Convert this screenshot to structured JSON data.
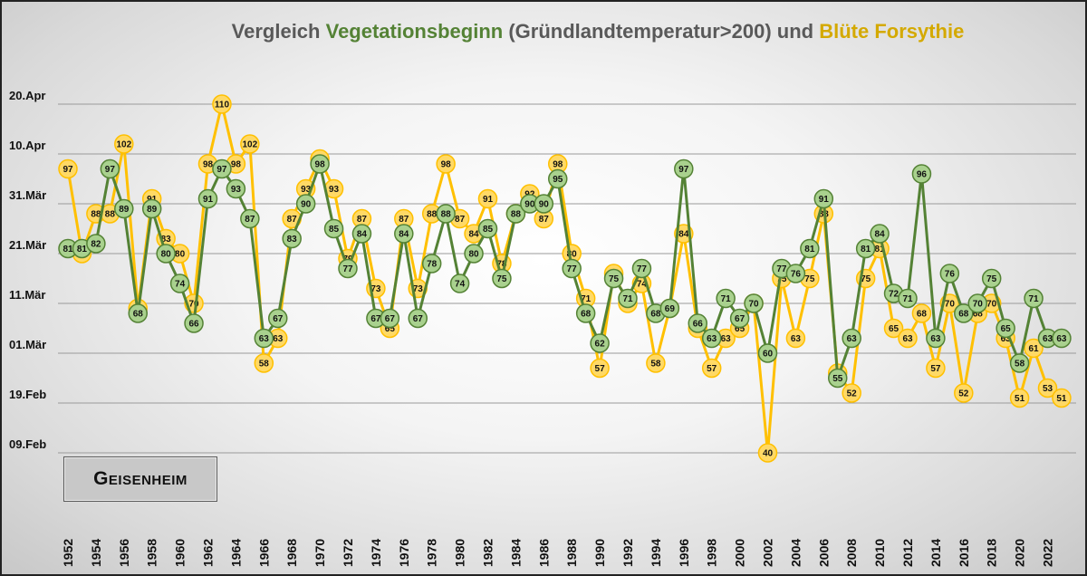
{
  "title": {
    "part1": "Vergleich ",
    "part2": "Vegetationsbeginn",
    "part3": " (Gründlandtemperatur>200) und ",
    "part4": "Blüte Forsythie"
  },
  "location": "Geisenheim",
  "colors": {
    "vegetation": "#548235",
    "vegetation_fill": "#a9d18e",
    "forsythia": "#ffc000",
    "forsythia_fill": "#ffd966",
    "grid": "#9a9a9a"
  },
  "chart_data": {
    "type": "line",
    "title": "Vergleich Vegetationsbeginn (Gründlandtemperatur>200) und Blüte Forsythie",
    "x": [
      1952,
      1953,
      1954,
      1955,
      1956,
      1957,
      1958,
      1959,
      1960,
      1961,
      1962,
      1963,
      1964,
      1965,
      1966,
      1967,
      1968,
      1969,
      1970,
      1971,
      1972,
      1973,
      1974,
      1975,
      1976,
      1977,
      1978,
      1979,
      1980,
      1981,
      1982,
      1983,
      1984,
      1985,
      1986,
      1987,
      1988,
      1989,
      1990,
      1991,
      1992,
      1993,
      1994,
      1995,
      1996,
      1997,
      1998,
      1999,
      2000,
      2001,
      2002,
      2003,
      2004,
      2005,
      2006,
      2007,
      2008,
      2009,
      2010,
      2011,
      2012,
      2013,
      2014,
      2015,
      2016,
      2017,
      2018,
      2019,
      2020,
      2021,
      2022,
      2023
    ],
    "x_tick_labels": [
      "1952",
      "1954",
      "1956",
      "1958",
      "1960",
      "1962",
      "1964",
      "1966",
      "1968",
      "1970",
      "1972",
      "1974",
      "1976",
      "1978",
      "1980",
      "1982",
      "1984",
      "1986",
      "1988",
      "1990",
      "1992",
      "1994",
      "1996",
      "1998",
      "2000",
      "2002",
      "2004",
      "2006",
      "2008",
      "2010",
      "2012",
      "2014",
      "2016",
      "2018",
      "2020",
      "2022"
    ],
    "y_ticks": [
      {
        "value": 40,
        "label": "09.Feb"
      },
      {
        "value": 50,
        "label": "19.Feb"
      },
      {
        "value": 60,
        "label": "01.Mär"
      },
      {
        "value": 70,
        "label": "11.Mär"
      },
      {
        "value": 80,
        "label": "21.Mär"
      },
      {
        "value": 90,
        "label": "31.Mär"
      },
      {
        "value": 100,
        "label": "10.Apr"
      },
      {
        "value": 110,
        "label": "20.Apr"
      }
    ],
    "ylim": [
      40,
      110
    ],
    "grid": true,
    "series": [
      {
        "name": "Vegetationsbeginn",
        "color": "#548235",
        "values": [
          81,
          81,
          82,
          97,
          89,
          68,
          89,
          80,
          74,
          66,
          91,
          97,
          93,
          87,
          63,
          67,
          83,
          90,
          98,
          85,
          77,
          84,
          67,
          67,
          84,
          67,
          78,
          88,
          74,
          80,
          85,
          75,
          88,
          90,
          90,
          95,
          77,
          68,
          62,
          75,
          71,
          77,
          68,
          69,
          97,
          66,
          63,
          71,
          67,
          70,
          60,
          77,
          76,
          81,
          91,
          55,
          63,
          81,
          84,
          72,
          71,
          96,
          63,
          76,
          68,
          70,
          75,
          65,
          58,
          71,
          63,
          63
        ]
      },
      {
        "name": "Blüte Forsythie",
        "color": "#ffc000",
        "values": [
          97,
          80,
          88,
          88,
          102,
          69,
          91,
          83,
          80,
          70,
          98,
          110,
          98,
          102,
          58,
          63,
          87,
          93,
          99,
          93,
          79,
          87,
          73,
          65,
          87,
          73,
          88,
          98,
          87,
          84,
          91,
          78,
          88,
          92,
          87,
          98,
          80,
          71,
          57,
          76,
          70,
          74,
          58,
          69,
          84,
          65,
          57,
          63,
          65,
          70,
          40,
          75,
          63,
          75,
          88,
          56,
          52,
          75,
          81,
          65,
          63,
          68,
          57,
          70,
          52,
          68,
          70,
          63,
          51,
          61,
          53,
          51
        ]
      }
    ]
  }
}
